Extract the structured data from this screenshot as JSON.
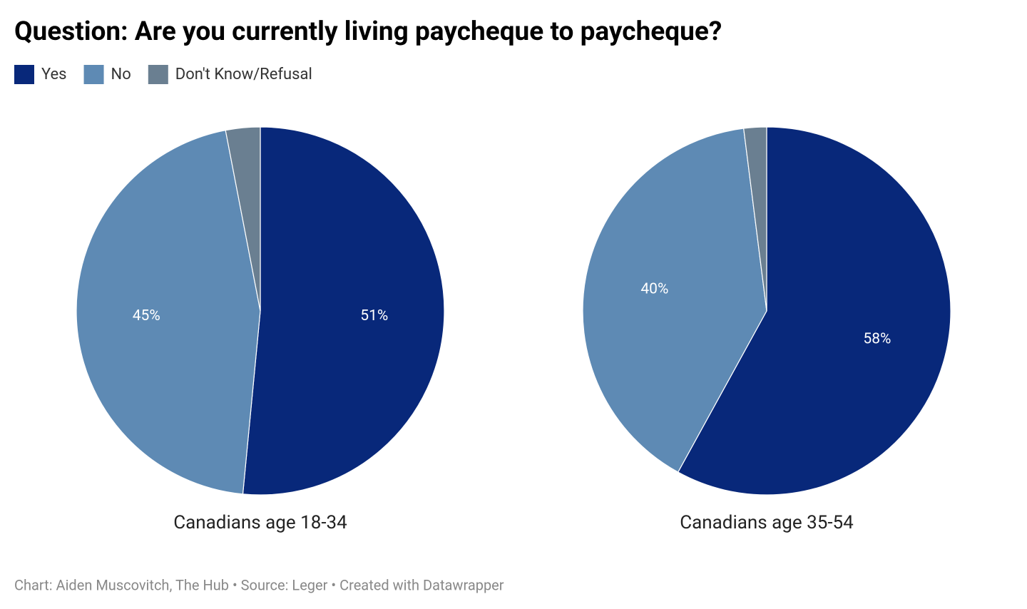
{
  "title": "Question: Are you currently living paycheque to paycheque?",
  "footer": "Chart: Aiden Muscovitch, The Hub • Source: Leger • Created with Datawrapper",
  "chart_data": [
    {
      "type": "pie",
      "title": "Canadians age 18-34",
      "categories": [
        "Yes",
        "No",
        "Don't Know/Refusal"
      ],
      "colors": [
        "#08287a",
        "#5e8ab4",
        "#6a7f91"
      ],
      "values": [
        51,
        45,
        3
      ],
      "value_labels": [
        "51%",
        "45%",
        null
      ]
    },
    {
      "type": "pie",
      "title": "Canadians age 35-54",
      "categories": [
        "Yes",
        "No",
        "Don't Know/Refusal"
      ],
      "colors": [
        "#08287a",
        "#5e8ab4",
        "#6a7f91"
      ],
      "values": [
        58,
        40,
        2
      ],
      "value_labels": [
        "58%",
        "40%",
        null
      ]
    }
  ]
}
